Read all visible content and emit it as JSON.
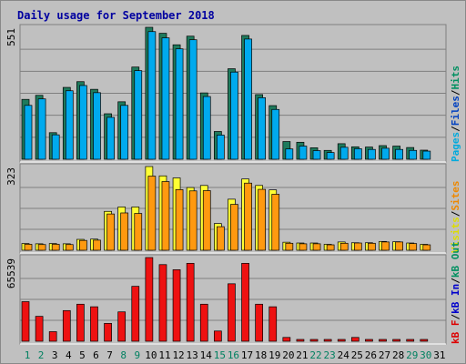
{
  "chart_data": {
    "type": "bar",
    "title": "Daily usage for September 2018",
    "days": [
      "1",
      "2",
      "3",
      "4",
      "5",
      "6",
      "7",
      "8",
      "9",
      "10",
      "11",
      "12",
      "13",
      "14",
      "15",
      "16",
      "17",
      "18",
      "19",
      "20",
      "21",
      "22",
      "23",
      "24",
      "25",
      "26",
      "27",
      "28",
      "29",
      "30",
      "31"
    ],
    "weekend_days": [
      "1",
      "2",
      "8",
      "9",
      "15",
      "16",
      "22",
      "23",
      "29",
      "30"
    ],
    "panels": [
      {
        "id": "hits",
        "ymax_label": "551",
        "ymax": 551,
        "legend": [
          {
            "text": "Pages",
            "color": "#00aadd"
          },
          {
            "text": "/",
            "color": "#000000"
          },
          {
            "text": "Files",
            "color": "#0040c0"
          },
          {
            "text": "/",
            "color": "#000000"
          },
          {
            "text": "Hits",
            "color": "#009060"
          }
        ],
        "series": [
          {
            "name": "Hits",
            "color": "#1e7a5c",
            "values": [
              250,
              267,
              111,
              300,
              324,
              292,
              190,
              240,
              385,
              551,
              526,
              478,
              514,
              277,
              116,
              378,
              517,
              270,
              224,
              74,
              71,
              48,
              37,
              65,
              52,
              51,
              57,
              55,
              49,
              38,
              0
            ]
          },
          {
            "name": "Files",
            "color": "#00aaee",
            "values": [
              225,
              252,
              102,
              286,
              308,
              278,
              175,
              225,
              370,
              533,
              507,
              461,
              499,
              262,
              101,
              364,
              502,
              257,
              208,
              43,
              55,
              36,
              28,
              50,
              44,
              41,
              46,
              41,
              37,
              34,
              0
            ]
          }
        ]
      },
      {
        "id": "sites",
        "ymax_label": "323",
        "ymax": 323,
        "legend": [
          {
            "text": "Visits",
            "color": "#dddd00"
          },
          {
            "text": "/",
            "color": "#000000"
          },
          {
            "text": "Sites",
            "color": "#ee8800"
          }
        ],
        "series": [
          {
            "name": "Visits",
            "color": "#ffff33",
            "values": [
              26,
              25,
              26,
              25,
              42,
              43,
              150,
              167,
              167,
              323,
              287,
              279,
              242,
              250,
              103,
              197,
              275,
              250,
              233,
              31,
              28,
              28,
              23,
              32,
              29,
              29,
              34,
              33,
              28,
              23,
              0
            ]
          },
          {
            "name": "Sites",
            "color": "#ff9910",
            "values": [
              23,
              22,
              23,
              22,
              38,
              39,
              140,
              144,
              142,
              286,
              265,
              234,
              229,
              230,
              91,
              177,
              259,
              235,
              216,
              27,
              25,
              25,
              21,
              27,
              28,
              27,
              32,
              32,
              26,
              21,
              0
            ]
          }
        ]
      },
      {
        "id": "kbytes",
        "ymax_label": "65539",
        "ymax": 65539,
        "legend": [
          {
            "text": "kB F",
            "color": "#dd0000"
          },
          {
            "text": "/",
            "color": "#000000"
          },
          {
            "text": "kB In",
            "color": "#0000cc"
          },
          {
            "text": "/",
            "color": "#000000"
          },
          {
            "text": "kB Out",
            "color": "#009060"
          }
        ],
        "series": [
          {
            "name": "kB F",
            "color": "#ee1111",
            "values": [
              31000,
              19500,
              7500,
              24000,
              29000,
              27000,
              14000,
              23000,
              43000,
              65539,
              60000,
              56000,
              61000,
              29000,
              8000,
              45000,
              61000,
              29000,
              27000,
              3000,
              1000,
              1000,
              1000,
              1000,
              3000,
              1000,
              1000,
              1000,
              1000,
              1000,
              0
            ]
          }
        ]
      }
    ]
  }
}
